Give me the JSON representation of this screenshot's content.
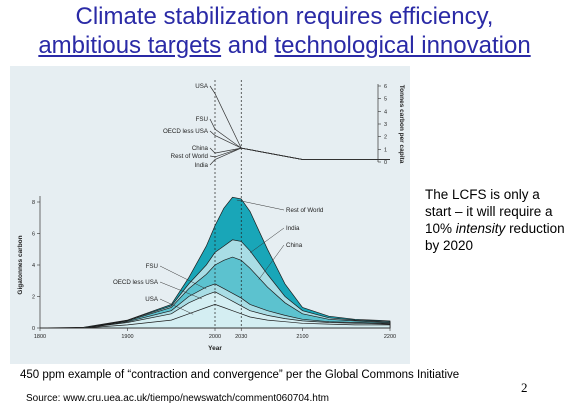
{
  "slide": {
    "title_line1": "Climate stabilization requires efficiency,",
    "title_ambitious": "ambitious targets",
    "title_and": " and ",
    "title_tech": "technological innovation",
    "side_note_1": "The LCFS is only a start – it will require a 10% ",
    "side_note_italic": "intensity",
    "side_note_2": " reduction by 2020",
    "caption": "450 ppm example of “contraction and convergence” per the Global Commons Initiative",
    "source": "Source: www.cru.uea.ac.uk/tiempo/newswatch/comment060704.htm",
    "page_number": "2"
  },
  "colors": {
    "title": "#2a2aa6",
    "figure_bg": "#e6eef2",
    "teal_dark": "#19a6b8",
    "teal_mid": "#5cc2cf",
    "teal_light": "#a9dde5",
    "teal_pale": "#d4eef2"
  },
  "chart_data": [
    {
      "type": "line",
      "ylabel": "Tonnes carbon per capita",
      "ylim": [
        0,
        6
      ],
      "yticks": [
        "0",
        "1",
        "2",
        "3",
        "4",
        "5",
        "6"
      ],
      "x": [
        2000,
        2030,
        2100,
        2200
      ],
      "series": [
        {
          "name": "USA",
          "values": [
            5.4,
            1.1,
            0.2,
            0.2
          ]
        },
        {
          "name": "FSU",
          "values": [
            2.6,
            1.1,
            0.2,
            0.2
          ]
        },
        {
          "name": "OECD less USA",
          "values": [
            2.1,
            1.1,
            0.2,
            0.2
          ]
        },
        {
          "name": "China",
          "values": [
            0.7,
            1.1,
            0.2,
            0.2
          ]
        },
        {
          "name": "Rest of World",
          "values": [
            0.4,
            1.1,
            0.2,
            0.2
          ]
        },
        {
          "name": "India",
          "values": [
            0.2,
            1.1,
            0.2,
            0.2
          ]
        }
      ]
    },
    {
      "type": "area",
      "xlabel": "Year",
      "ylabel": "Gigatonnes carbon",
      "xlim": [
        1800,
        2200
      ],
      "ylim": [
        0,
        8
      ],
      "xticks": [
        "1800",
        "1900",
        "2000",
        "2030",
        "2100",
        "2200"
      ],
      "yticks": [
        "0",
        "2",
        "4",
        "6",
        "8"
      ],
      "x": [
        1800,
        1850,
        1900,
        1950,
        1970,
        1990,
        2000,
        2010,
        2020,
        2030,
        2040,
        2060,
        2080,
        2100,
        2130,
        2160,
        2200
      ],
      "series": [
        {
          "name": "USA",
          "values": [
            0,
            0,
            0.2,
            0.5,
            0.9,
            1.3,
            1.5,
            1.3,
            1.1,
            0.9,
            0.7,
            0.5,
            0.4,
            0.3,
            0.25,
            0.2,
            0.2
          ]
        },
        {
          "name": "OECD less USA",
          "values": [
            0,
            0,
            0.35,
            0.9,
            1.6,
            2.1,
            2.3,
            2.0,
            1.7,
            1.4,
            1.1,
            0.8,
            0.6,
            0.45,
            0.35,
            0.3,
            0.25
          ]
        },
        {
          "name": "FSU",
          "values": [
            0,
            0,
            0.4,
            1.1,
            2.0,
            2.6,
            2.8,
            2.5,
            2.2,
            1.9,
            1.5,
            1.1,
            0.8,
            0.55,
            0.4,
            0.35,
            0.3
          ]
        },
        {
          "name": "China",
          "values": [
            0,
            0,
            0.45,
            1.3,
            2.5,
            3.4,
            4.0,
            4.3,
            4.5,
            4.3,
            3.8,
            2.6,
            1.6,
            0.9,
            0.55,
            0.45,
            0.35
          ]
        },
        {
          "name": "India",
          "values": [
            0,
            0,
            0.48,
            1.4,
            2.8,
            4.0,
            4.8,
            5.2,
            5.6,
            5.5,
            4.9,
            3.4,
            2.0,
            1.1,
            0.65,
            0.5,
            0.4
          ]
        },
        {
          "name": "Rest of World",
          "values": [
            0,
            0.05,
            0.5,
            1.5,
            3.2,
            5.2,
            6.5,
            7.6,
            8.3,
            8.2,
            7.4,
            5.0,
            2.8,
            1.3,
            0.75,
            0.55,
            0.45
          ]
        }
      ]
    }
  ]
}
